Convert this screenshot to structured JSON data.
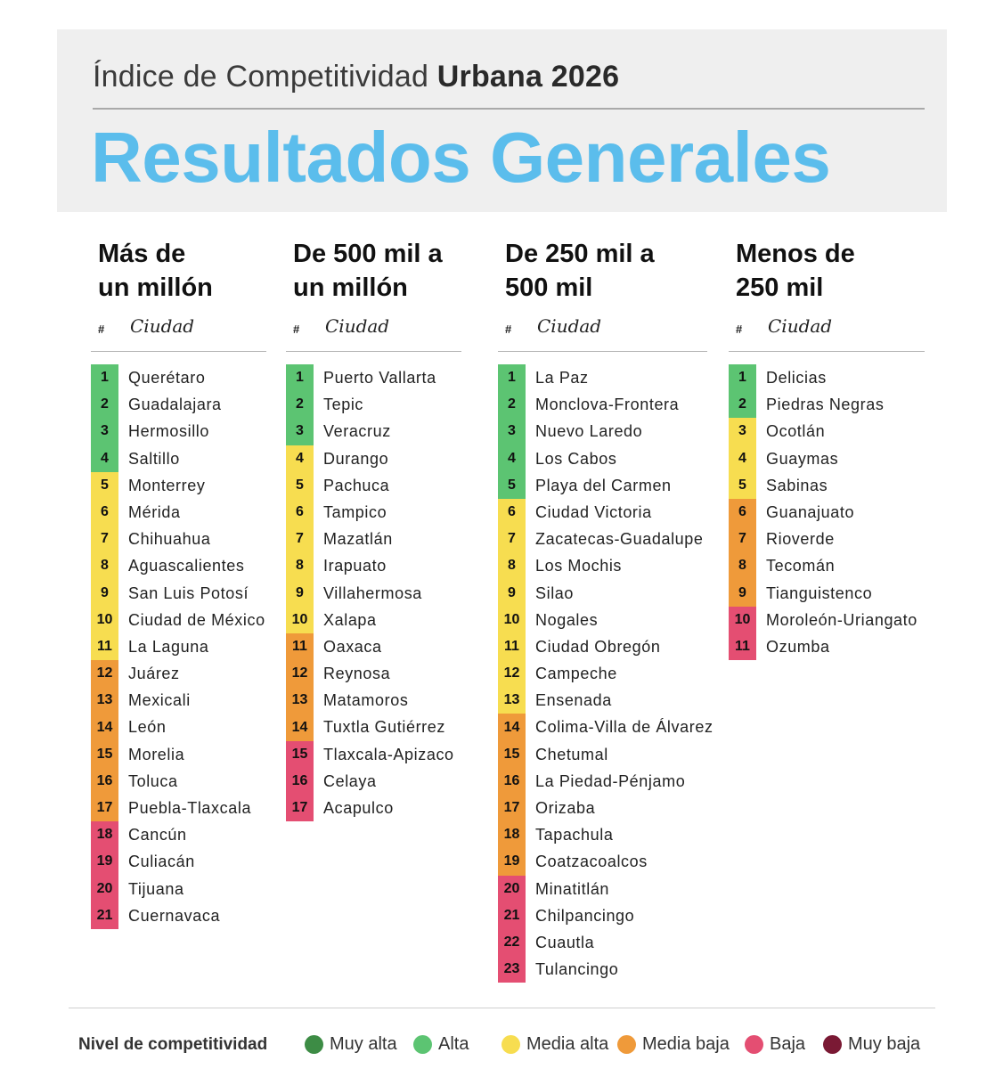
{
  "header": {
    "subtitle_regular": "Índice de Competitividad ",
    "subtitle_bold": "Urbana 2026",
    "title": "Resultados Generales"
  },
  "colors": {
    "muy_alta": "#3d8c45",
    "alta": "#5cc472",
    "media_alta": "#f7dd50",
    "media_baja": "#ef9a3a",
    "baja": "#e44e72",
    "muy_baja": "#7a1934",
    "title_blue": "#5bbdec"
  },
  "table_header": {
    "hash": "#",
    "city": "Ciudad"
  },
  "columns": [
    {
      "title_line1": "Más de",
      "title_line2": "un millón",
      "rows": [
        {
          "rank": "1",
          "city": "Querétaro",
          "level": "alta"
        },
        {
          "rank": "2",
          "city": "Guadalajara",
          "level": "alta"
        },
        {
          "rank": "3",
          "city": "Hermosillo",
          "level": "alta"
        },
        {
          "rank": "4",
          "city": "Saltillo",
          "level": "alta"
        },
        {
          "rank": "5",
          "city": "Monterrey",
          "level": "media_alta"
        },
        {
          "rank": "6",
          "city": "Mérida",
          "level": "media_alta"
        },
        {
          "rank": "7",
          "city": "Chihuahua",
          "level": "media_alta"
        },
        {
          "rank": "8",
          "city": "Aguascalientes",
          "level": "media_alta"
        },
        {
          "rank": "9",
          "city": "San Luis Potosí",
          "level": "media_alta"
        },
        {
          "rank": "10",
          "city": "Ciudad de México",
          "level": "media_alta"
        },
        {
          "rank": "11",
          "city": "La Laguna",
          "level": "media_alta"
        },
        {
          "rank": "12",
          "city": "Juárez",
          "level": "media_baja"
        },
        {
          "rank": "13",
          "city": "Mexicali",
          "level": "media_baja"
        },
        {
          "rank": "14",
          "city": "León",
          "level": "media_baja"
        },
        {
          "rank": "15",
          "city": "Morelia",
          "level": "media_baja"
        },
        {
          "rank": "16",
          "city": "Toluca",
          "level": "media_baja"
        },
        {
          "rank": "17",
          "city": "Puebla-Tlaxcala",
          "level": "media_baja"
        },
        {
          "rank": "18",
          "city": "Cancún",
          "level": "baja"
        },
        {
          "rank": "19",
          "city": "Culiacán",
          "level": "baja"
        },
        {
          "rank": "20",
          "city": "Tijuana",
          "level": "baja"
        },
        {
          "rank": "21",
          "city": "Cuernavaca",
          "level": "baja"
        }
      ]
    },
    {
      "title_line1": "De 500 mil a",
      "title_line2": "un millón",
      "rows": [
        {
          "rank": "1",
          "city": "Puerto Vallarta",
          "level": "alta"
        },
        {
          "rank": "2",
          "city": "Tepic",
          "level": "alta"
        },
        {
          "rank": "3",
          "city": "Veracruz",
          "level": "alta"
        },
        {
          "rank": "4",
          "city": "Durango",
          "level": "media_alta"
        },
        {
          "rank": "5",
          "city": "Pachuca",
          "level": "media_alta"
        },
        {
          "rank": "6",
          "city": "Tampico",
          "level": "media_alta"
        },
        {
          "rank": "7",
          "city": "Mazatlán",
          "level": "media_alta"
        },
        {
          "rank": "8",
          "city": "Irapuato",
          "level": "media_alta"
        },
        {
          "rank": "9",
          "city": "Villahermosa",
          "level": "media_alta"
        },
        {
          "rank": "10",
          "city": "Xalapa",
          "level": "media_alta"
        },
        {
          "rank": "11",
          "city": "Oaxaca",
          "level": "media_baja"
        },
        {
          "rank": "12",
          "city": "Reynosa",
          "level": "media_baja"
        },
        {
          "rank": "13",
          "city": "Matamoros",
          "level": "media_baja"
        },
        {
          "rank": "14",
          "city": "Tuxtla Gutiérrez",
          "level": "media_baja"
        },
        {
          "rank": "15",
          "city": "Tlaxcala-Apizaco",
          "level": "baja"
        },
        {
          "rank": "16",
          "city": "Celaya",
          "level": "baja"
        },
        {
          "rank": "17",
          "city": "Acapulco",
          "level": "baja"
        }
      ]
    },
    {
      "title_line1": "De 250 mil a",
      "title_line2": "500 mil",
      "rows": [
        {
          "rank": "1",
          "city": "La Paz",
          "level": "alta"
        },
        {
          "rank": "2",
          "city": "Monclova-Frontera",
          "level": "alta"
        },
        {
          "rank": "3",
          "city": "Nuevo Laredo",
          "level": "alta"
        },
        {
          "rank": "4",
          "city": "Los Cabos",
          "level": "alta"
        },
        {
          "rank": "5",
          "city": "Playa del Carmen",
          "level": "alta"
        },
        {
          "rank": "6",
          "city": "Ciudad Victoria",
          "level": "media_alta"
        },
        {
          "rank": "7",
          "city": "Zacatecas-Guadalupe",
          "level": "media_alta"
        },
        {
          "rank": "8",
          "city": "Los Mochis",
          "level": "media_alta"
        },
        {
          "rank": "9",
          "city": "Silao",
          "level": "media_alta"
        },
        {
          "rank": "10",
          "city": "Nogales",
          "level": "media_alta"
        },
        {
          "rank": "11",
          "city": "Ciudad Obregón",
          "level": "media_alta"
        },
        {
          "rank": "12",
          "city": "Campeche",
          "level": "media_alta"
        },
        {
          "rank": "13",
          "city": "Ensenada",
          "level": "media_alta"
        },
        {
          "rank": "14",
          "city": "Colima-Villa de Álvarez",
          "level": "media_baja"
        },
        {
          "rank": "15",
          "city": "Chetumal",
          "level": "media_baja"
        },
        {
          "rank": "16",
          "city": "La Piedad-Pénjamo",
          "level": "media_baja"
        },
        {
          "rank": "17",
          "city": "Orizaba",
          "level": "media_baja"
        },
        {
          "rank": "18",
          "city": "Tapachula",
          "level": "media_baja"
        },
        {
          "rank": "19",
          "city": "Coatzacoalcos",
          "level": "media_baja"
        },
        {
          "rank": "20",
          "city": "Minatitlán",
          "level": "baja"
        },
        {
          "rank": "21",
          "city": "Chilpancingo",
          "level": "baja"
        },
        {
          "rank": "22",
          "city": "Cuautla",
          "level": "baja"
        },
        {
          "rank": "23",
          "city": "Tulancingo",
          "level": "baja"
        }
      ]
    },
    {
      "title_line1": "Menos de",
      "title_line2": "250 mil",
      "rows": [
        {
          "rank": "1",
          "city": "Delicias",
          "level": "alta"
        },
        {
          "rank": "2",
          "city": "Piedras Negras",
          "level": "alta"
        },
        {
          "rank": "3",
          "city": "Ocotlán",
          "level": "media_alta"
        },
        {
          "rank": "4",
          "city": "Guaymas",
          "level": "media_alta"
        },
        {
          "rank": "5",
          "city": "Sabinas",
          "level": "media_alta"
        },
        {
          "rank": "6",
          "city": "Guanajuato",
          "level": "media_baja"
        },
        {
          "rank": "7",
          "city": "Rioverde",
          "level": "media_baja"
        },
        {
          "rank": "8",
          "city": "Tecomán",
          "level": "media_baja"
        },
        {
          "rank": "9",
          "city": "Tianguistenco",
          "level": "media_baja"
        },
        {
          "rank": "10",
          "city": "Moroleón-Uriangato",
          "level": "baja"
        },
        {
          "rank": "11",
          "city": "Ozumba",
          "level": "baja"
        }
      ]
    }
  ],
  "legend": {
    "title": "Nivel de competitividad",
    "items": [
      {
        "label": "Muy alta",
        "level": "muy_alta"
      },
      {
        "label": "Alta",
        "level": "alta"
      },
      {
        "label": "Media alta",
        "level": "media_alta"
      },
      {
        "label": "Media baja",
        "level": "media_baja"
      },
      {
        "label": "Baja",
        "level": "baja"
      },
      {
        "label": "Muy baja",
        "level": "muy_baja"
      }
    ]
  }
}
